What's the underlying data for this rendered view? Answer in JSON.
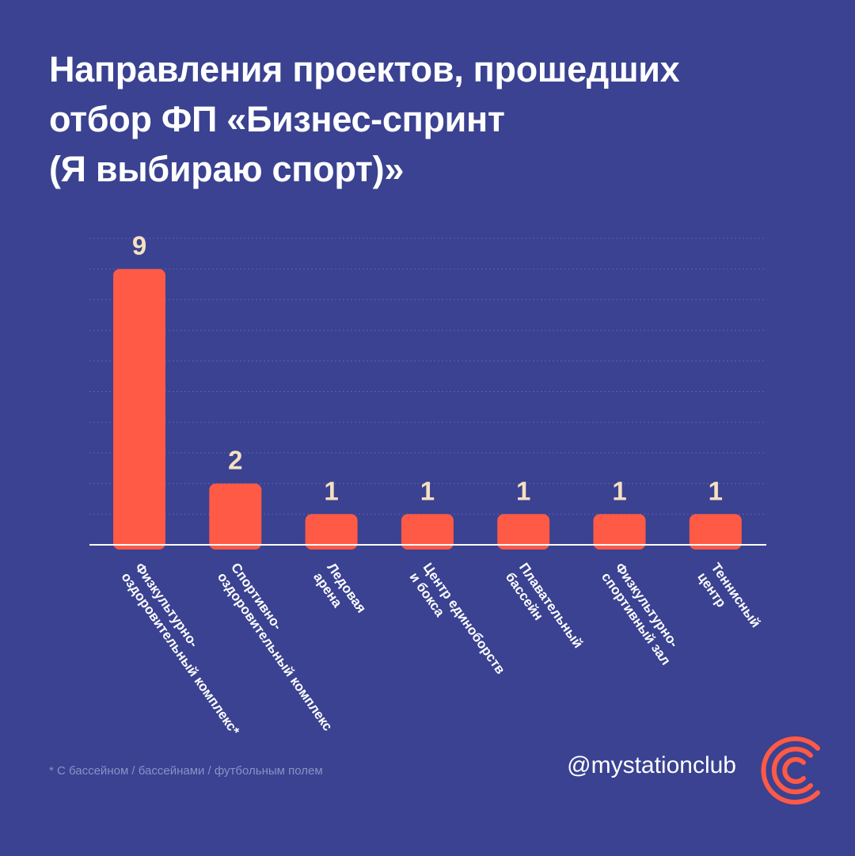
{
  "title_lines": [
    "Направления проектов, прошедших",
    "отбор ФП «Бизнес-спринт",
    "(Я выбираю спорт)»"
  ],
  "footnote": "* С бассейном / бассейнами / футбольным полем",
  "handle": "@mystationclub",
  "logo_icon": "station-club-logo-icon",
  "colors": {
    "background": "#3a4291",
    "bar": "#ff5a45",
    "value_label": "#f6e1c0",
    "gridline": "#5a62a8",
    "axis": "#ffffff",
    "logo": "#ff5a45"
  },
  "chart_data": {
    "type": "bar",
    "title": "Направления проектов, прошедших отбор ФП «Бизнес-спринт (Я выбираю спорт)»",
    "categories": [
      [
        "Физкультурно-",
        "оздоровительный комплекс*"
      ],
      [
        "Спортивно-",
        "оздоровительный комплекс"
      ],
      [
        "Ледовая",
        "арена"
      ],
      [
        "Центр единоборств",
        "и бокса"
      ],
      [
        "Плавательный",
        "бассейн"
      ],
      [
        "Физкультурно-",
        "спортивный зал"
      ],
      [
        "Теннисный",
        "центр"
      ]
    ],
    "values": [
      9,
      2,
      1,
      1,
      1,
      1,
      1
    ],
    "ylim": [
      0,
      10
    ],
    "grid": true,
    "legend": "none"
  }
}
